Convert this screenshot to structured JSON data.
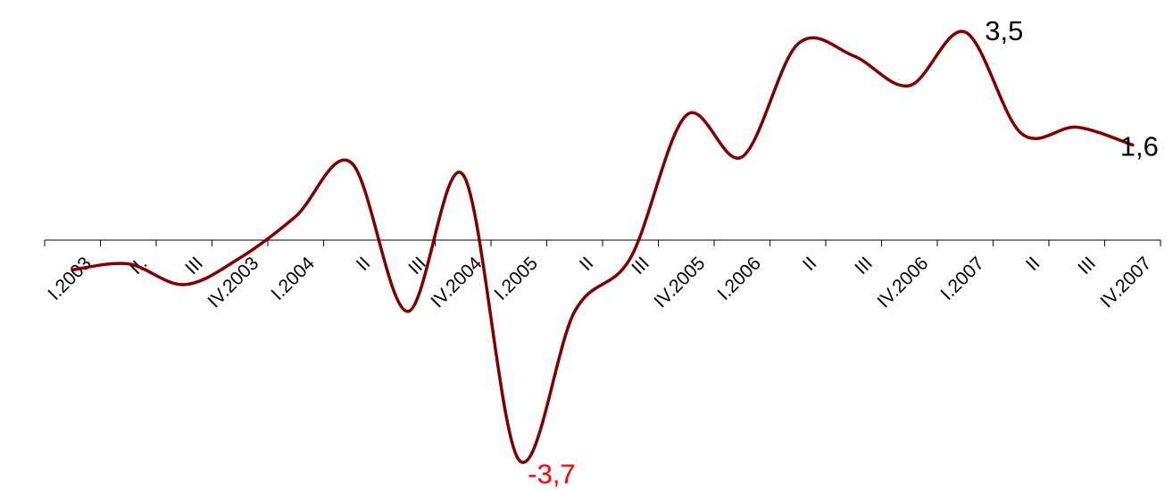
{
  "chart_data": {
    "type": "line",
    "categories": [
      "I.2003",
      "II.",
      "III",
      "IV.2003",
      "I.2004",
      "II",
      "III",
      "IV.2004",
      "I.2005",
      "II",
      "III",
      "IV.2005",
      "I.2006",
      "II",
      "III",
      "IV.2006",
      "I.2007",
      "II",
      "III",
      "IV.2007"
    ],
    "series": [
      {
        "values": [
          -0.5,
          -0.4,
          -0.75,
          -0.3,
          0.4,
          1.3,
          -1.2,
          1.1,
          -3.7,
          -1.2,
          -0.3,
          2.1,
          1.4,
          3.3,
          3.1,
          2.6,
          3.5,
          1.8,
          1.9,
          1.6
        ],
        "color": "#800000"
      }
    ],
    "data_labels": [
      {
        "index": 8,
        "text": "-3,7",
        "color": "#ff0000"
      },
      {
        "index": 16,
        "text": "3,5",
        "color": "#000000"
      },
      {
        "index": 19,
        "text": "1,6",
        "color": "#000000"
      }
    ],
    "title": "",
    "xlabel": "",
    "ylabel": "",
    "ylim": [
      -3.7,
      3.5
    ],
    "grid": false,
    "legend": "none"
  }
}
